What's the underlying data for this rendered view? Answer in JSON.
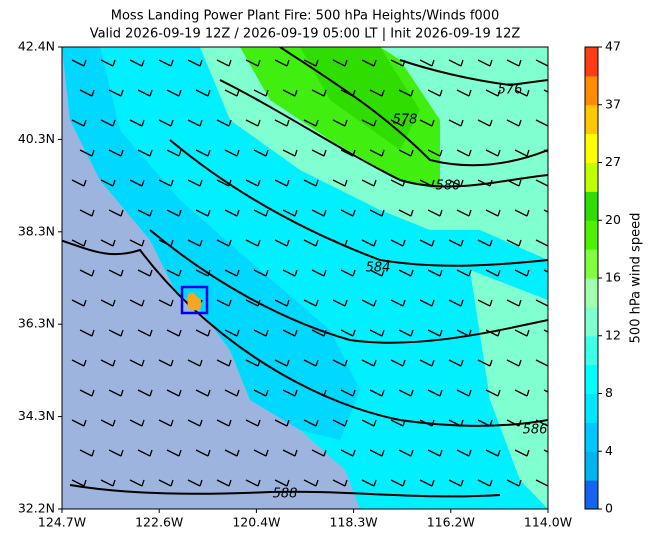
{
  "title": [
    "Moss Landing Power Plant Fire: 500 hPa Heights/Winds f000",
    "Valid 2026-09-19 12Z / 2026-09-19 05:00 LT | Init 2026-09-19 12Z"
  ],
  "map": {
    "xtick_labels": [
      "124.7W",
      "122.6W",
      "120.4W",
      "118.3W",
      "116.2W",
      "114.0W"
    ],
    "ytick_labels": [
      "42.4N",
      "40.3N",
      "38.3N",
      "36.3N",
      "34.3N",
      "32.2N"
    ],
    "contour_labels": [
      "576",
      "578",
      "580",
      "584",
      "586",
      "588"
    ]
  },
  "colorbar": {
    "label": "500 hPa wind speed",
    "ticks": [
      "0",
      "4",
      "8",
      "12",
      "16",
      "20",
      "27",
      "37",
      "47"
    ]
  }
}
